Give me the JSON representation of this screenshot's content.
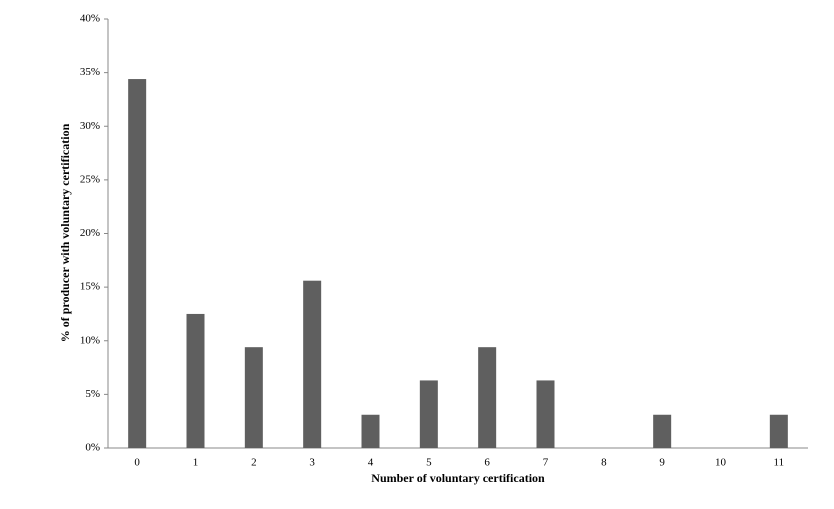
{
  "chart_data": {
    "type": "bar",
    "x_label": "Number of voluntary certification",
    "y_label": "% of producer with voluntary certification",
    "categories": [
      "0",
      "1",
      "2",
      "3",
      "4",
      "5",
      "6",
      "7",
      "8",
      "9",
      "10",
      "11"
    ],
    "values": [
      34.4,
      12.5,
      9.4,
      15.6,
      3.1,
      6.3,
      9.4,
      6.3,
      0,
      3.1,
      0,
      3.1
    ],
    "color": "#5f5f5f",
    "ylim": [
      0,
      40
    ],
    "yticks": [
      {
        "value": 0,
        "label": "0%"
      },
      {
        "value": 5,
        "label": "5%"
      },
      {
        "value": 10,
        "label": "10%"
      },
      {
        "value": 15,
        "label": "15%"
      },
      {
        "value": 20,
        "label": "20%"
      },
      {
        "value": 25,
        "label": "25%"
      },
      {
        "value": 30,
        "label": "30%"
      },
      {
        "value": 35,
        "label": "35%"
      },
      {
        "value": 40,
        "label": "40%"
      }
    ]
  }
}
